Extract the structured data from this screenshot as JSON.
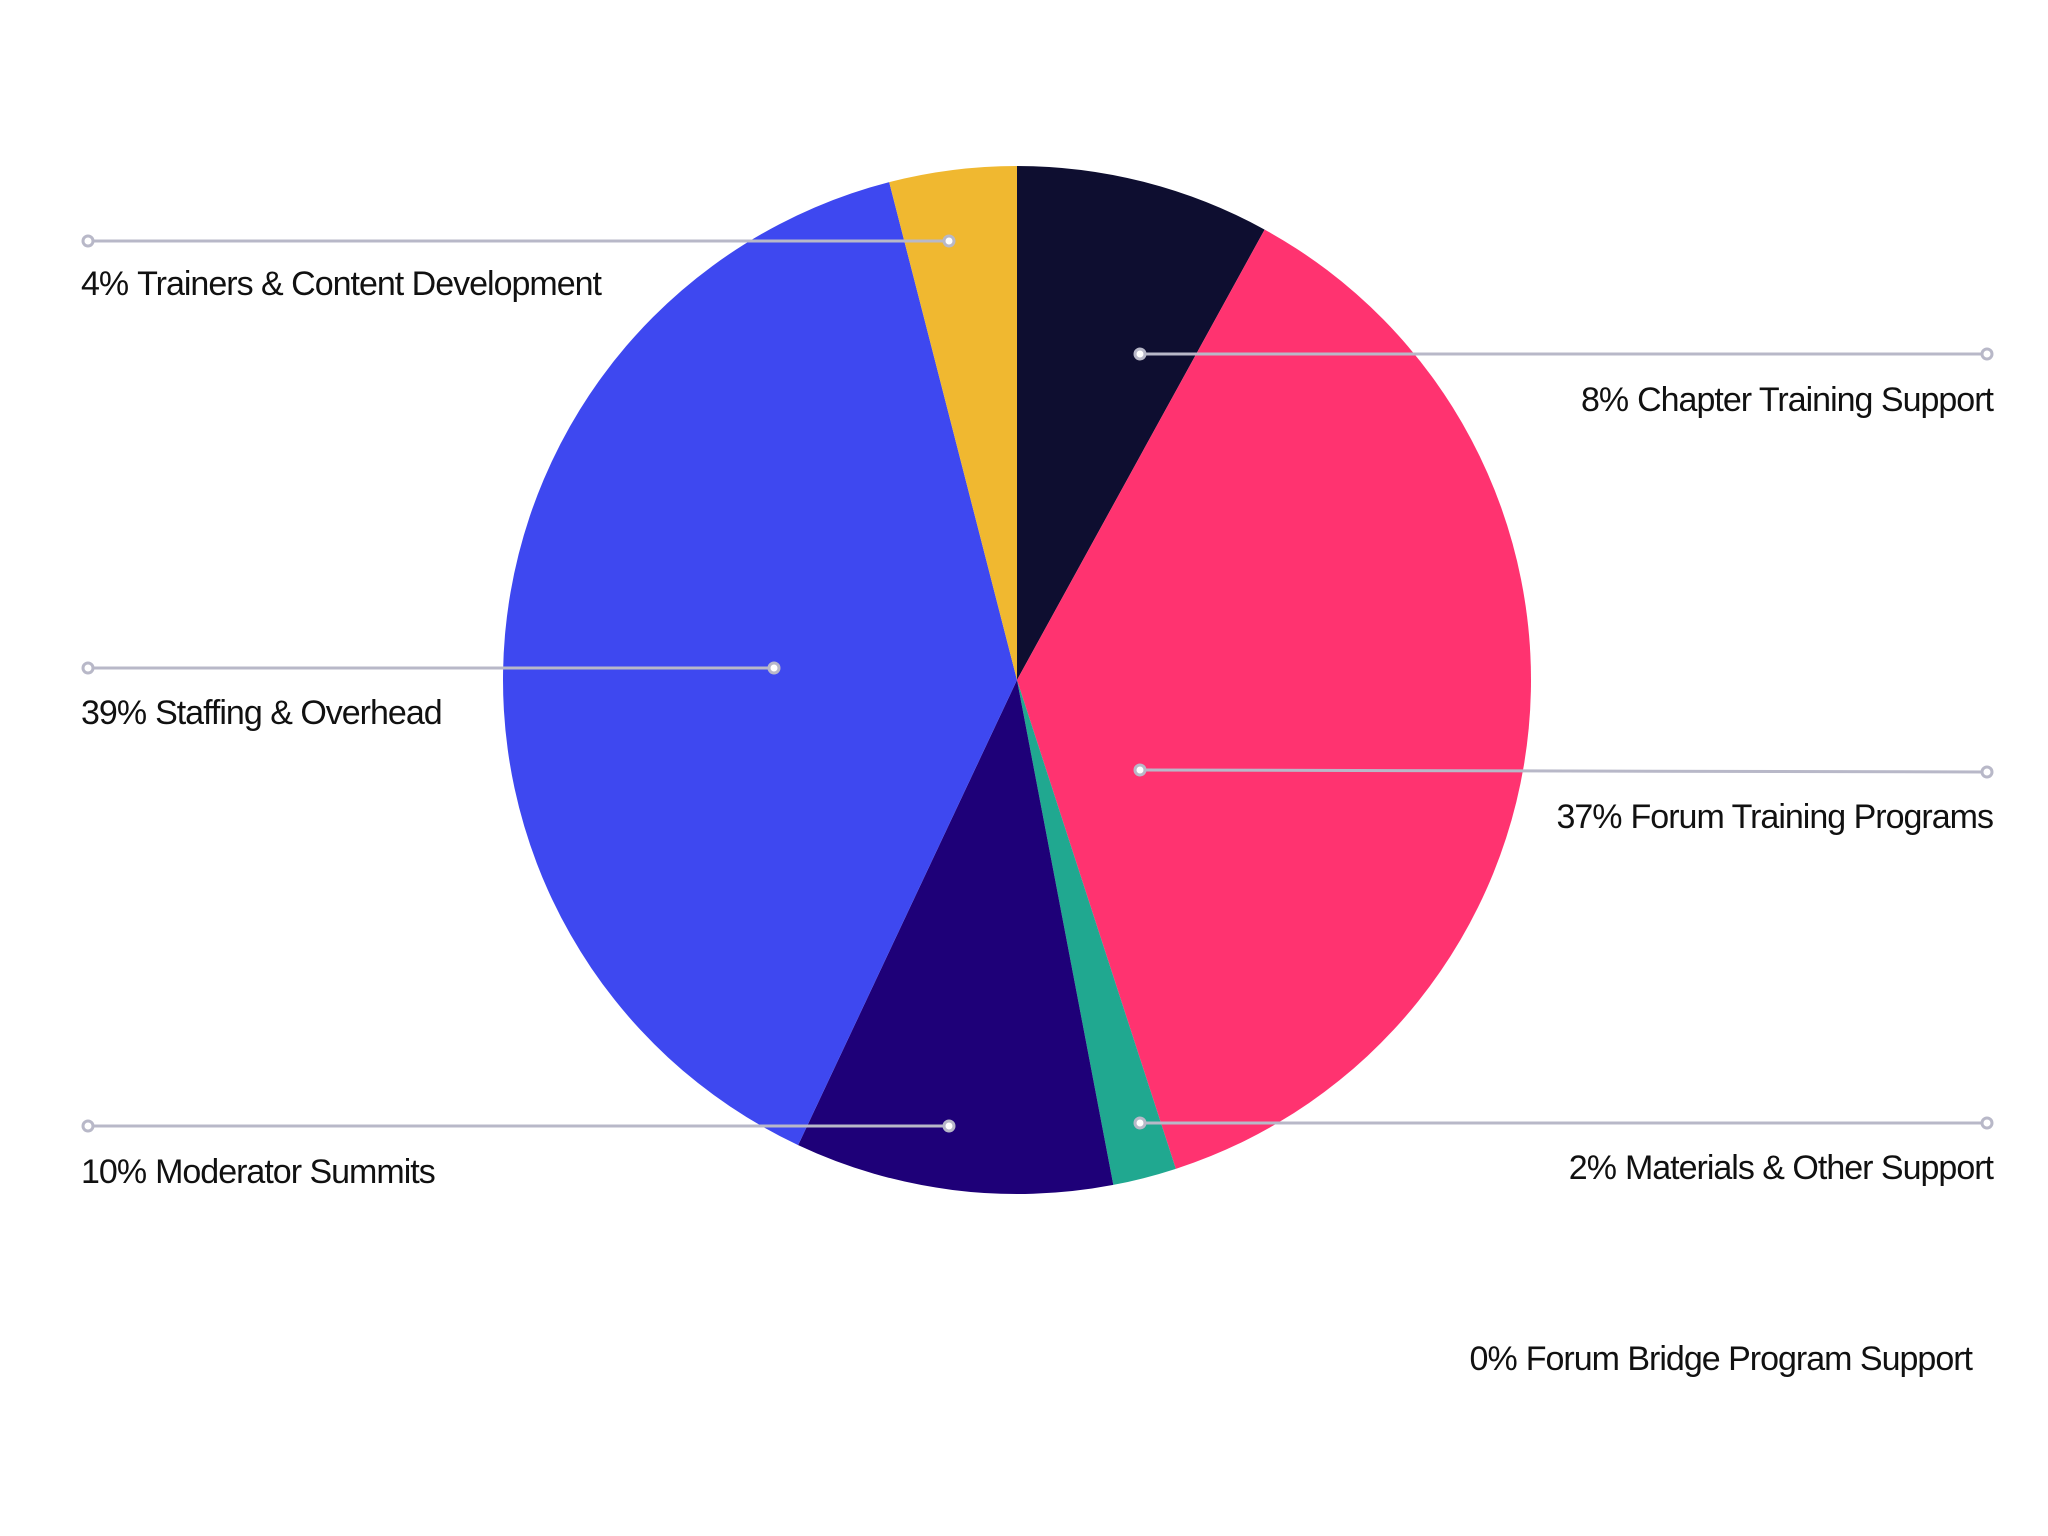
{
  "chart_data": {
    "type": "pie",
    "categories": [
      "Chapter Training Support",
      "Forum Training Programs",
      "Materials & Other Support",
      "Forum Bridge Program Support",
      "Moderator Summits",
      "Staffing & Overhead",
      "Trainers & Content Development"
    ],
    "values": [
      8,
      37,
      2,
      0,
      10,
      39,
      4
    ],
    "value_labels": [
      "8%",
      "37%",
      "2%",
      "0%",
      "10%",
      "39%",
      "4%"
    ],
    "colors": [
      "#0e0e30",
      "#ff3370",
      "#20a890",
      "#888888",
      "#1e0078",
      "#3e48f0",
      "#f0b830"
    ]
  }
}
